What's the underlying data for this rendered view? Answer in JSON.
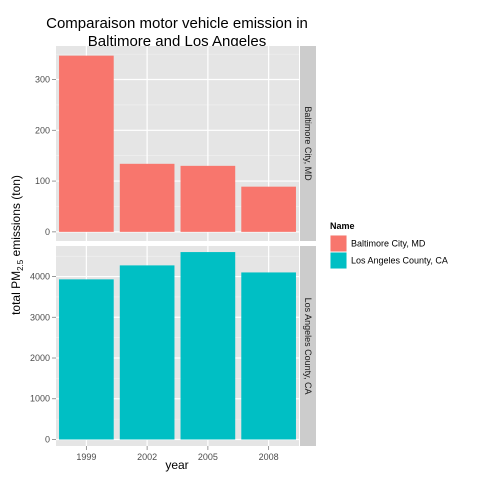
{
  "chart_data": {
    "type": "bar",
    "title_line1": "Comparaison motor vehicle emission in",
    "title_line2": "Baltimore and Los Angeles",
    "xlabel": "year",
    "ylabel_prefix": "total PM",
    "ylabel_subscript": "2.5",
    "ylabel_suffix": " emissions (ton)",
    "categories": [
      "1999",
      "2002",
      "2005",
      "2008"
    ],
    "facets": [
      {
        "name": "Baltimore City, MD",
        "color": "#f8766d",
        "values": [
          347,
          134,
          130,
          89
        ],
        "ylim": [
          -18,
          366
        ],
        "yticks": [
          0,
          100,
          200,
          300
        ],
        "ytick_labels": [
          "0",
          "100",
          "200",
          "300"
        ]
      },
      {
        "name": "Los Angeles County, CA",
        "color": "#00bfc4",
        "values": [
          3931,
          4274,
          4601,
          4101
        ],
        "ylim": [
          -160,
          4750
        ],
        "yticks": [
          0,
          1000,
          2000,
          3000,
          4000
        ],
        "ytick_labels": [
          "0",
          "1000",
          "2000",
          "3000",
          "4000"
        ]
      }
    ],
    "legend": {
      "title": "Name",
      "position": "right",
      "entries": [
        {
          "label": "Baltimore City, MD",
          "color": "#f8766d"
        },
        {
          "label": "Los Angeles County, CA",
          "color": "#00bfc4"
        }
      ]
    },
    "panel_background": "#e5e5e5",
    "strip_background": "#cccccc",
    "grid": true
  }
}
